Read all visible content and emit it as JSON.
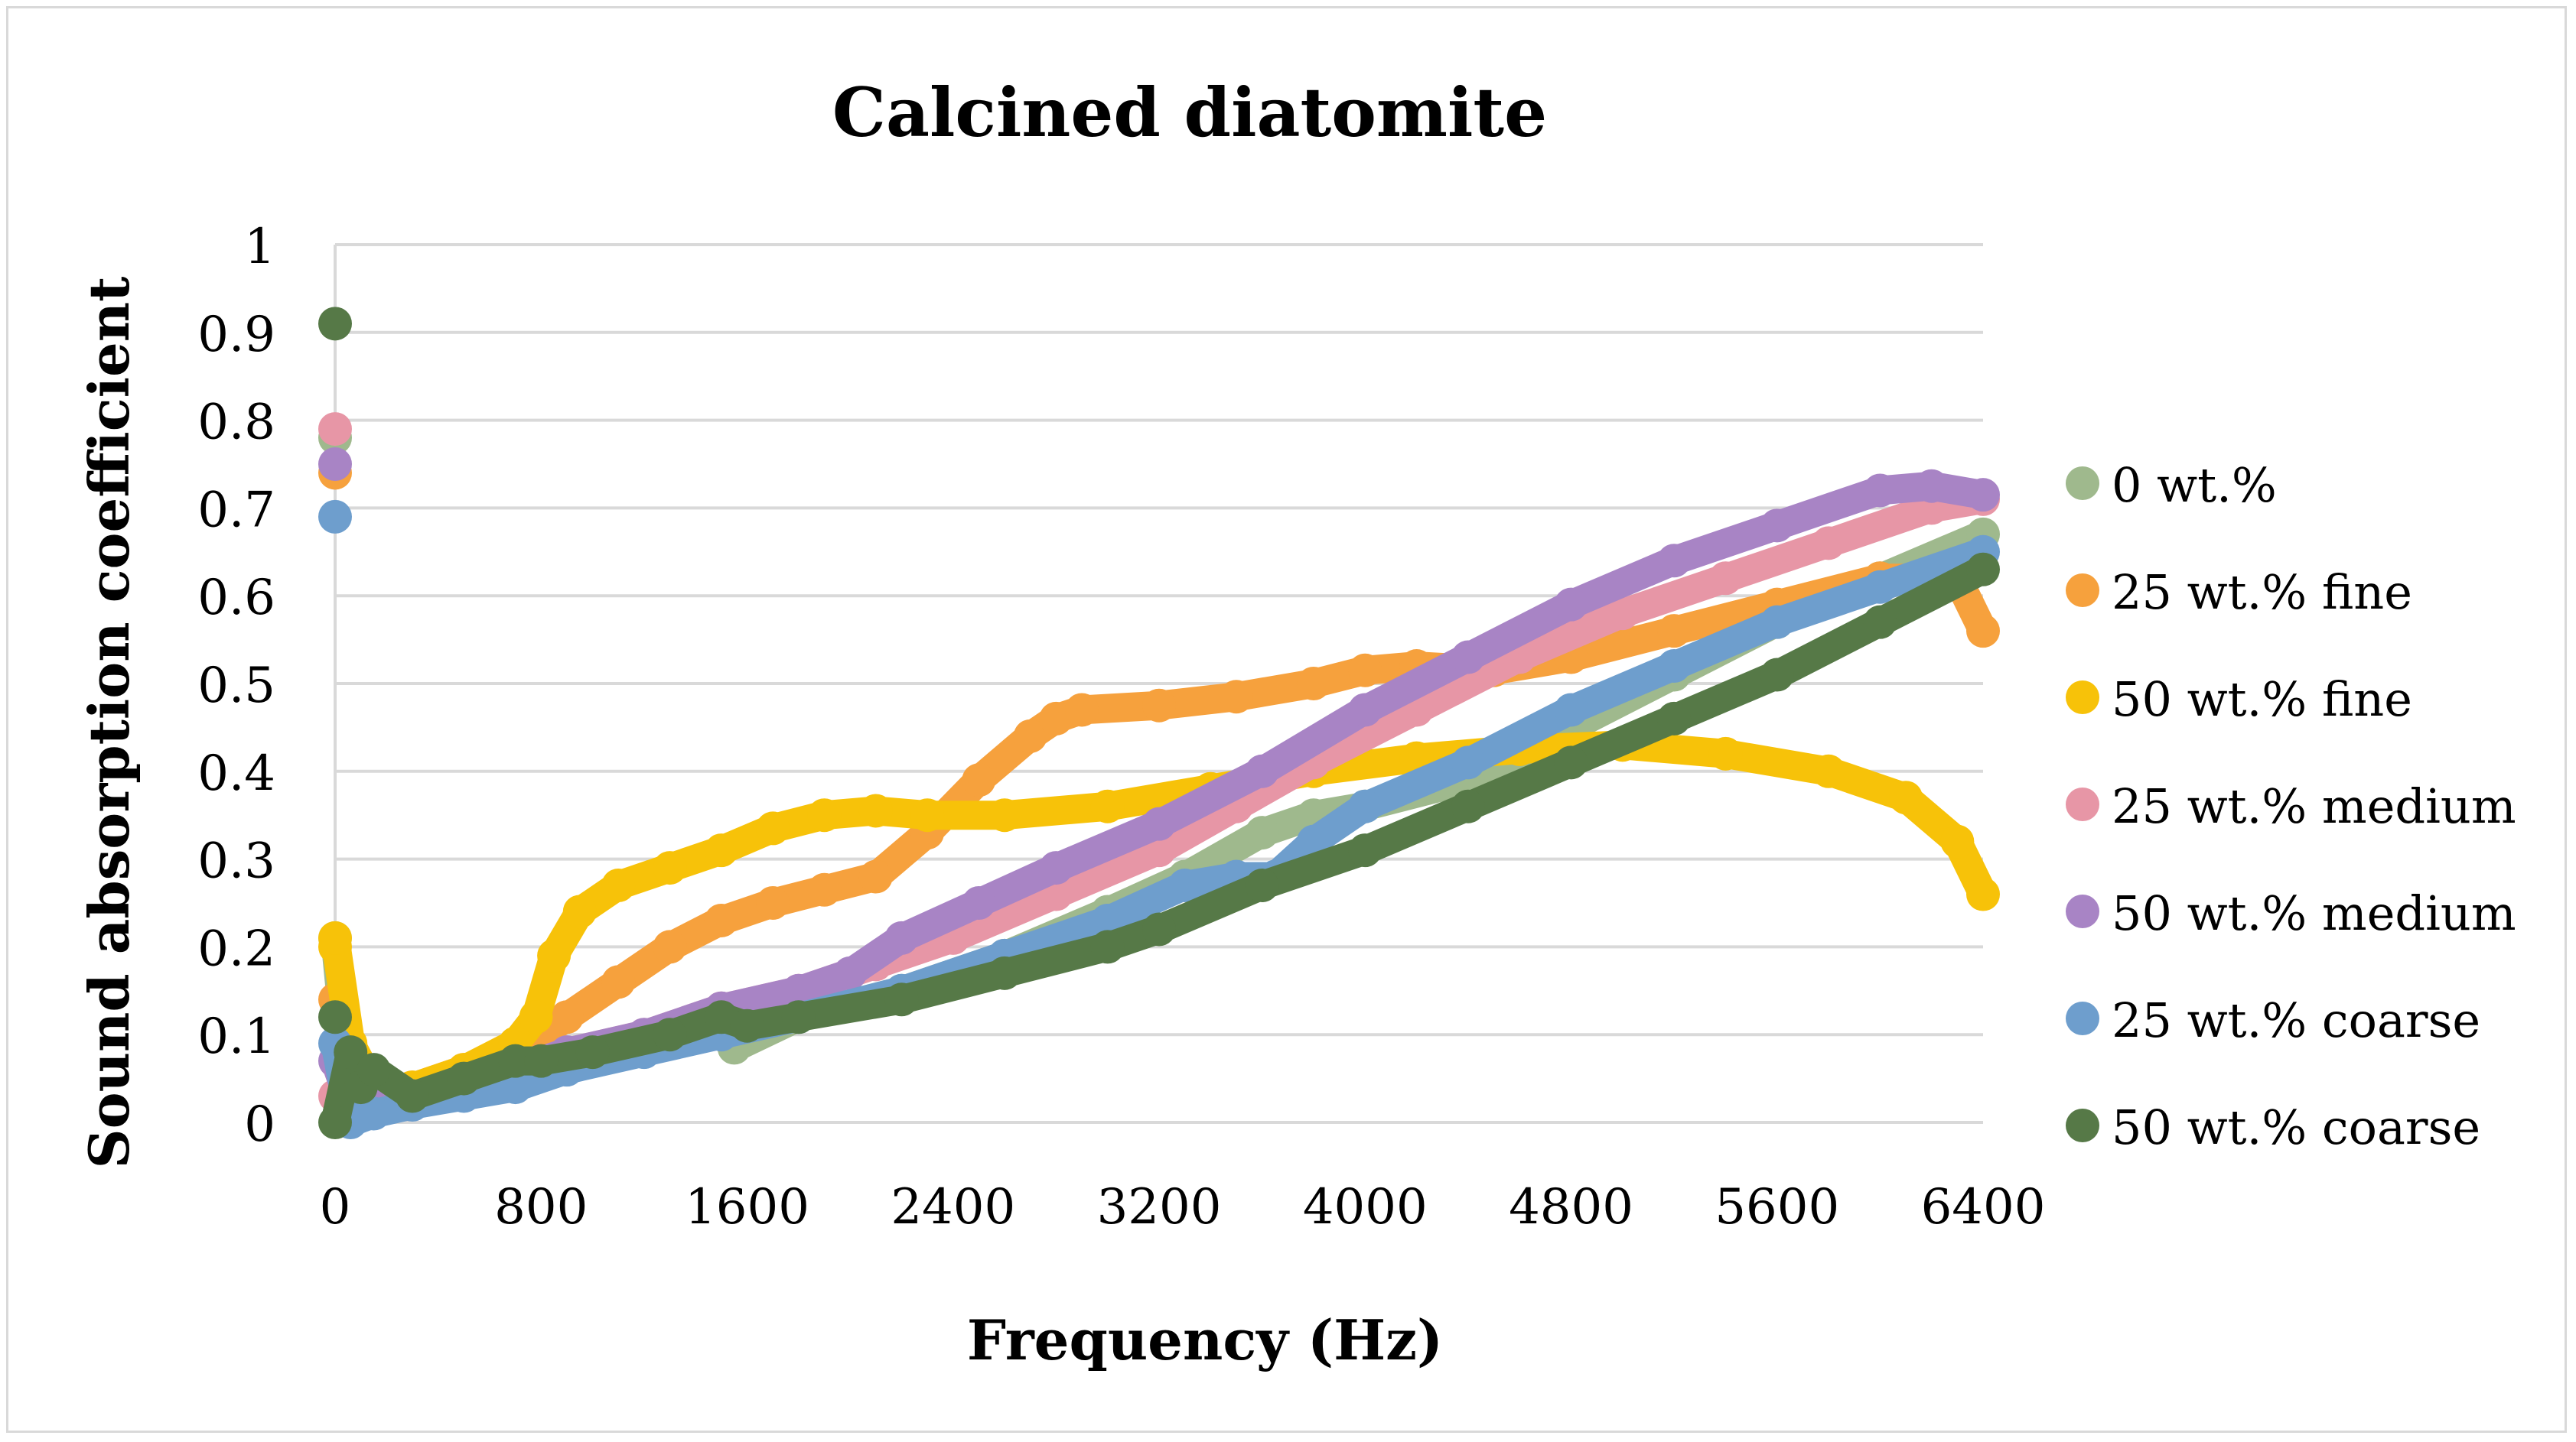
{
  "chart_data": {
    "type": "scatter",
    "title": "Calcined diatomite",
    "xlabel": "Frequency (Hz)",
    "ylabel": "Sound absorption coefficient",
    "xlim": [
      0,
      6400
    ],
    "ylim": [
      0,
      1
    ],
    "xticks": [
      "0",
      "800",
      "1600",
      "2400",
      "3200",
      "4000",
      "4800",
      "5600",
      "6400"
    ],
    "xtick_values": [
      0,
      800,
      1600,
      2400,
      3200,
      4000,
      4800,
      5600,
      6400
    ],
    "yticks": [
      "0",
      "0.1",
      "0.2",
      "0.3",
      "0.4",
      "0.5",
      "0.6",
      "0.7",
      "0.8",
      "0.9",
      "1"
    ],
    "ytick_values": [
      0,
      0.1,
      0.2,
      0.3,
      0.4,
      0.5,
      0.6,
      0.7,
      0.8,
      0.9,
      1.0
    ],
    "grid": "horizontal",
    "legend_position": "right",
    "series": [
      {
        "name": "0 wt.%",
        "color": "#9fb98d",
        "x": [
          0,
          0,
          60,
          150,
          300,
          500,
          700,
          900,
          1200,
          1500,
          1550,
          1800,
          2200,
          2600,
          3000,
          3300,
          3600,
          3800,
          4000,
          4400,
          4800,
          5200,
          5600,
          6000,
          6400
        ],
        "y": [
          0.78,
          0.21,
          0.03,
          0.02,
          0.03,
          0.04,
          0.06,
          0.07,
          0.09,
          0.12,
          0.085,
          0.12,
          0.15,
          0.19,
          0.24,
          0.28,
          0.33,
          0.35,
          0.36,
          0.39,
          0.45,
          0.51,
          0.57,
          0.62,
          0.67
        ]
      },
      {
        "name": "25 wt.% fine",
        "color": "#f6a13d",
        "x": [
          0,
          0,
          60,
          150,
          300,
          500,
          700,
          900,
          1100,
          1300,
          1500,
          1700,
          1900,
          2100,
          2300,
          2500,
          2700,
          2800,
          2900,
          3200,
          3500,
          3800,
          4000,
          4200,
          4500,
          4800,
          5200,
          5600,
          6000,
          6300,
          6400
        ],
        "y": [
          0.74,
          0.14,
          0.03,
          0.03,
          0.04,
          0.06,
          0.08,
          0.12,
          0.16,
          0.2,
          0.23,
          0.25,
          0.265,
          0.28,
          0.33,
          0.39,
          0.44,
          0.46,
          0.47,
          0.475,
          0.485,
          0.5,
          0.515,
          0.52,
          0.515,
          0.53,
          0.56,
          0.59,
          0.62,
          0.62,
          0.56
        ]
      },
      {
        "name": "50 wt.% fine",
        "color": "#f7c209",
        "x": [
          0,
          0,
          60,
          150,
          300,
          500,
          700,
          780,
          850,
          950,
          1100,
          1300,
          1500,
          1700,
          1900,
          2100,
          2300,
          2600,
          3000,
          3400,
          3800,
          4200,
          4600,
          5000,
          5400,
          5800,
          6100,
          6300,
          6400
        ],
        "y": [
          0.2,
          0.21,
          0.09,
          0.04,
          0.04,
          0.06,
          0.09,
          0.12,
          0.19,
          0.24,
          0.27,
          0.29,
          0.31,
          0.335,
          0.35,
          0.355,
          0.35,
          0.35,
          0.36,
          0.38,
          0.4,
          0.415,
          0.425,
          0.43,
          0.42,
          0.4,
          0.37,
          0.32,
          0.26
        ]
      },
      {
        "name": "25 wt.% medium",
        "color": "#e796a6",
        "x": [
          0,
          0,
          60,
          150,
          300,
          500,
          700,
          900,
          1200,
          1500,
          1800,
          2100,
          2400,
          2800,
          3200,
          3500,
          3800,
          4200,
          4600,
          5000,
          5400,
          5800,
          6200,
          6400
        ],
        "y": [
          0.79,
          0.03,
          0.02,
          0.02,
          0.03,
          0.04,
          0.06,
          0.08,
          0.1,
          0.13,
          0.15,
          0.18,
          0.21,
          0.26,
          0.31,
          0.36,
          0.41,
          0.47,
          0.53,
          0.58,
          0.62,
          0.66,
          0.7,
          0.71
        ]
      },
      {
        "name": "50 wt.% medium",
        "color": "#a884c5",
        "x": [
          0,
          0,
          60,
          150,
          300,
          500,
          700,
          900,
          1200,
          1500,
          1800,
          2000,
          2200,
          2500,
          2800,
          3200,
          3600,
          4000,
          4400,
          4800,
          5200,
          5600,
          6000,
          6200,
          6400
        ],
        "y": [
          0.75,
          0.07,
          0.02,
          0.02,
          0.03,
          0.04,
          0.06,
          0.08,
          0.1,
          0.13,
          0.15,
          0.17,
          0.21,
          0.25,
          0.29,
          0.34,
          0.4,
          0.47,
          0.53,
          0.59,
          0.64,
          0.68,
          0.72,
          0.725,
          0.715
        ]
      },
      {
        "name": "25 wt.% coarse",
        "color": "#6e9ecd",
        "x": [
          0,
          0,
          60,
          150,
          300,
          500,
          700,
          900,
          1200,
          1500,
          1800,
          2200,
          2600,
          3000,
          3300,
          3500,
          3650,
          3800,
          4000,
          4400,
          4800,
          5200,
          5600,
          6000,
          6400
        ],
        "y": [
          0.69,
          0.09,
          0.0,
          0.01,
          0.02,
          0.03,
          0.04,
          0.06,
          0.08,
          0.1,
          0.12,
          0.15,
          0.19,
          0.23,
          0.27,
          0.28,
          0.28,
          0.32,
          0.36,
          0.41,
          0.47,
          0.52,
          0.57,
          0.61,
          0.65
        ]
      },
      {
        "name": "50 wt.% coarse",
        "color": "#567947",
        "x": [
          0,
          0,
          0,
          60,
          100,
          150,
          300,
          500,
          700,
          800,
          1000,
          1300,
          1500,
          1600,
          1800,
          2200,
          2600,
          3000,
          3200,
          3600,
          4000,
          4400,
          4800,
          5200,
          5600,
          6000,
          6400
        ],
        "y": [
          0.91,
          0.12,
          0.0,
          0.08,
          0.04,
          0.06,
          0.03,
          0.05,
          0.07,
          0.07,
          0.08,
          0.1,
          0.12,
          0.11,
          0.12,
          0.14,
          0.17,
          0.2,
          0.22,
          0.27,
          0.31,
          0.36,
          0.41,
          0.46,
          0.51,
          0.57,
          0.63
        ]
      }
    ]
  }
}
